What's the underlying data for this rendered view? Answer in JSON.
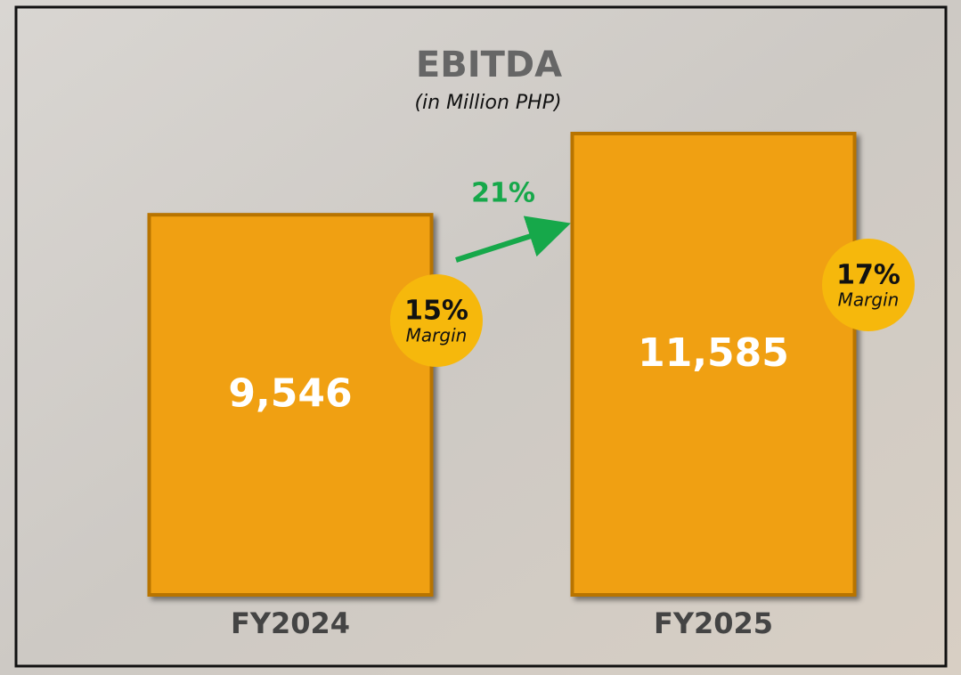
{
  "chart_data": {
    "type": "bar",
    "title": "EBITDA",
    "subtitle": "(in Million PHP)",
    "categories": [
      "FY2024",
      "FY2025"
    ],
    "values": [
      9546,
      11585
    ],
    "value_labels": [
      "9,546",
      "11,585"
    ],
    "color": "#f0a012",
    "margin_labels": [
      "15%",
      "17%"
    ],
    "margin_caption": "Margin",
    "growth_label": "21%"
  }
}
